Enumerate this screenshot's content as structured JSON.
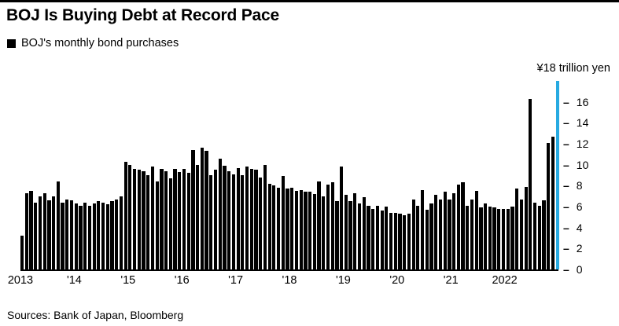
{
  "header": {
    "title": "BOJ Is Buying Debt at Record Pace"
  },
  "legend": {
    "label": "BOJ's monthly bond purchases"
  },
  "axis_note": "¥18 trillion yen",
  "footer": {
    "sources": "Sources: Bank of Japan, Bloomberg"
  },
  "chart_data": {
    "type": "bar",
    "title": "BOJ Is Buying Debt at Record Pace",
    "series_name": "BOJ's monthly bond purchases",
    "unit": "trillion yen",
    "x_start": "2013-01",
    "months_per_tick": 12,
    "x_tick_labels": [
      "2013",
      "'14",
      "'15",
      "'16",
      "'17",
      "'18",
      "'19",
      "'20",
      "'21",
      "2022"
    ],
    "y_ticks": [
      0,
      2,
      4,
      6,
      8,
      10,
      12,
      14,
      16
    ],
    "ylim": [
      0,
      18
    ],
    "grid": false,
    "legend_position": "top-left",
    "bar_color": "#000000",
    "highlight_color": "#27aae1",
    "highlight_last": true,
    "values": [
      3.2,
      7.3,
      7.5,
      6.4,
      7.0,
      7.3,
      6.6,
      7.0,
      8.4,
      6.4,
      6.7,
      6.6,
      6.3,
      6.1,
      6.4,
      6.1,
      6.3,
      6.5,
      6.4,
      6.2,
      6.5,
      6.7,
      7.0,
      10.3,
      10.0,
      9.6,
      9.5,
      9.4,
      9.0,
      9.8,
      8.4,
      9.6,
      9.4,
      8.7,
      9.6,
      9.3,
      9.6,
      9.2,
      11.4,
      10.0,
      11.6,
      11.3,
      9.0,
      9.5,
      10.6,
      9.9,
      9.4,
      9.1,
      9.7,
      9.0,
      9.8,
      9.6,
      9.5,
      8.8,
      10.0,
      8.2,
      8.0,
      7.8,
      8.9,
      7.7,
      7.8,
      7.5,
      7.6,
      7.4,
      7.4,
      7.2,
      8.4,
      7.0,
      8.1,
      8.3,
      6.5,
      9.8,
      7.1,
      6.5,
      7.3,
      6.3,
      6.9,
      6.1,
      5.8,
      6.1,
      5.6,
      6.0,
      5.4,
      5.4,
      5.3,
      5.2,
      5.3,
      6.7,
      6.1,
      7.6,
      5.7,
      6.3,
      7.1,
      6.7,
      7.4,
      6.7,
      7.3,
      8.1,
      8.3,
      6.1,
      6.7,
      7.5,
      5.9,
      6.3,
      6.0,
      5.9,
      5.8,
      5.8,
      5.8,
      6.0,
      7.7,
      6.7,
      7.9,
      16.3,
      6.4,
      6.1,
      6.6,
      12.1,
      12.7,
      18.0
    ]
  }
}
